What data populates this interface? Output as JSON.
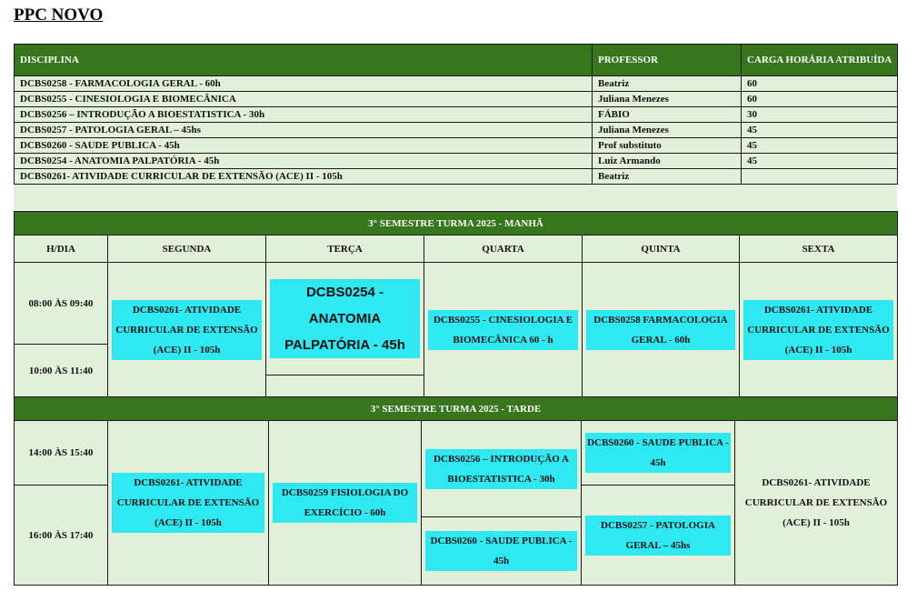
{
  "title": "PPC NOVO",
  "assignments": {
    "headers": [
      "DISCIPLINA",
      "PROFESSOR",
      "CARGA HORÁRIA ATRIBUÍDA"
    ],
    "rows": [
      [
        "DCBS0258 - FARMACOLOGIA GERAL - 60h",
        "Beatriz",
        "60"
      ],
      [
        "DCBS0255 - CINESIOLOGIA E BIOMECÂNICA",
        "Juliana Menezes",
        "60"
      ],
      [
        "DCBS0256 –  INTRODUÇÃO A BIOESTATISTICA - 30h",
        "FÁBIO",
        "30"
      ],
      [
        "DCBS0257 - PATOLOGIA GERAL – 45hs",
        "Juliana  Menezes",
        "45"
      ],
      [
        "DCBS0260 -  SAUDE PUBLICA - 45h",
        "Prof substituto",
        "45"
      ],
      [
        "DCBS0254 - ANATOMIA PALPATÓRIA - 45h",
        "Luiz Armando",
        "45"
      ],
      [
        "DCBS0261- ATIVIDADE CURRICULAR DE EXTENSÃO (ACE) II - 105h",
        "Beatriz"
      ]
    ]
  },
  "schedule": {
    "days": [
      "H/DIA",
      "SEGUNDA",
      "TERÇA",
      "QUARTA",
      "QUINTA",
      "SEXTA"
    ],
    "morning": {
      "title": "3° SEMESTRE TURMA 2025 - MANHÃ",
      "times": [
        "08:00 ÀS 09:40",
        "10:00 ÀS 11:40"
      ],
      "segunda": "DCBS0261-  ATIVIDADE CURRICULAR DE EXTENSÃO (ACE) II - 105h",
      "terca": "DCBS0254 - ANATOMIA PALPATÓRIA - 45h",
      "quarta": "DCBS0255 - CINESIOLOGIA E BIOMECÂNICA 60 - h",
      "quinta": "DCBS0258 FARMACOLOGIA GERAL - 60h",
      "sexta": "DCBS0261- ATIVIDADE CURRICULAR DE EXTENSÃO (ACE) II - 105h"
    },
    "afternoon": {
      "title": "3° SEMESTRE TURMA 2025 - TARDE",
      "times": [
        "14:00 ÀS 15:40",
        "16:00 ÀS 17:40"
      ],
      "segunda": "DCBS0261- ATIVIDADE CURRICULAR DE EXTENSÃO (ACE) II - 105h",
      "terca": "DCBS0259 FISIOLOGIA DO EXERCÍCIO - 60h",
      "quarta_top": "DCBS0256 – INTRODUÇÃO A BIOESTATISTICA - 30h",
      "quarta_bottom": "DCBS0260 - SAUDE PUBLICA - 45h",
      "quinta_top": "DCBS0260 - SAUDE PUBLICA - 45h",
      "quinta_bottom": "DCBS0257 - PATOLOGIA GERAL – 45hs",
      "sexta": "DCBS0261- ATIVIDADE CURRICULAR DE EXTENSÃO (ACE) II - 105h"
    }
  }
}
